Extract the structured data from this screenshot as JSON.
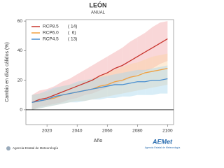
{
  "chart_data": {
    "type": "line",
    "title": "LEÓN",
    "subtitle": "ANUAL",
    "y_label": "Cambio en días cálidos (%)",
    "x_label": "Año",
    "footer": "Agencia Estatal de Meteorología",
    "logo_text": "AEMet",
    "logo_subtext": "Agencia Estatal de Meteorología",
    "x": [
      2010,
      2015,
      2020,
      2025,
      2030,
      2035,
      2040,
      2045,
      2050,
      2055,
      2060,
      2065,
      2070,
      2075,
      2080,
      2085,
      2090,
      2095,
      2100
    ],
    "xlim": [
      2006,
      2104
    ],
    "xticks": [
      2020,
      2040,
      2060,
      2080,
      2100
    ],
    "ylim": [
      -10,
      61
    ],
    "yticks": [
      0,
      20,
      40,
      60
    ],
    "legend": "upper-left",
    "series": [
      {
        "name": "RCP8.5",
        "model_count_label": "( 14)",
        "color": "#c8352e",
        "band_color": "#f2a6a8",
        "values": [
          5,
          7,
          8,
          10,
          12,
          14,
          16,
          18,
          20,
          23,
          25,
          28,
          30,
          33,
          36,
          39,
          42,
          45,
          48
        ],
        "lower": [
          0,
          2,
          3,
          4,
          5,
          7,
          8,
          10,
          11,
          13,
          15,
          17,
          19,
          21,
          24,
          26,
          28,
          31,
          33
        ],
        "upper": [
          10,
          13,
          14,
          16,
          19,
          21,
          24,
          27,
          30,
          33,
          36,
          39,
          42,
          46,
          49,
          52,
          56,
          59,
          60
        ]
      },
      {
        "name": "RCP6.0",
        "model_count_label": "(  6)",
        "color": "#f0a040",
        "band_color": "#fbd3a3",
        "values": [
          5,
          6,
          7,
          8,
          10,
          11,
          12,
          13,
          14,
          16,
          17,
          19,
          20,
          22,
          23,
          25,
          26,
          27,
          28
        ],
        "lower": [
          0,
          1,
          2,
          3,
          4,
          5,
          6,
          6,
          7,
          8,
          9,
          10,
          11,
          12,
          13,
          14,
          15,
          16,
          17
        ],
        "upper": [
          10,
          11,
          12,
          14,
          16,
          17,
          18,
          20,
          21,
          23,
          25,
          27,
          29,
          31,
          32,
          34,
          36,
          37,
          38
        ]
      },
      {
        "name": "RCP4.5",
        "model_count_label": "( 13)",
        "color": "#4a8fd0",
        "band_color": "#a9d6ee",
        "values": [
          5,
          6,
          7,
          9,
          10,
          11,
          12,
          13,
          14,
          15,
          16,
          17,
          17,
          18,
          19,
          19,
          20,
          20,
          21
        ],
        "lower": [
          0,
          1,
          2,
          3,
          4,
          5,
          5,
          6,
          7,
          7,
          8,
          8,
          9,
          9,
          10,
          10,
          10,
          11,
          11
        ],
        "upper": [
          10,
          11,
          13,
          15,
          16,
          17,
          19,
          20,
          21,
          22,
          23,
          24,
          25,
          26,
          27,
          27,
          28,
          29,
          30
        ]
      }
    ]
  }
}
